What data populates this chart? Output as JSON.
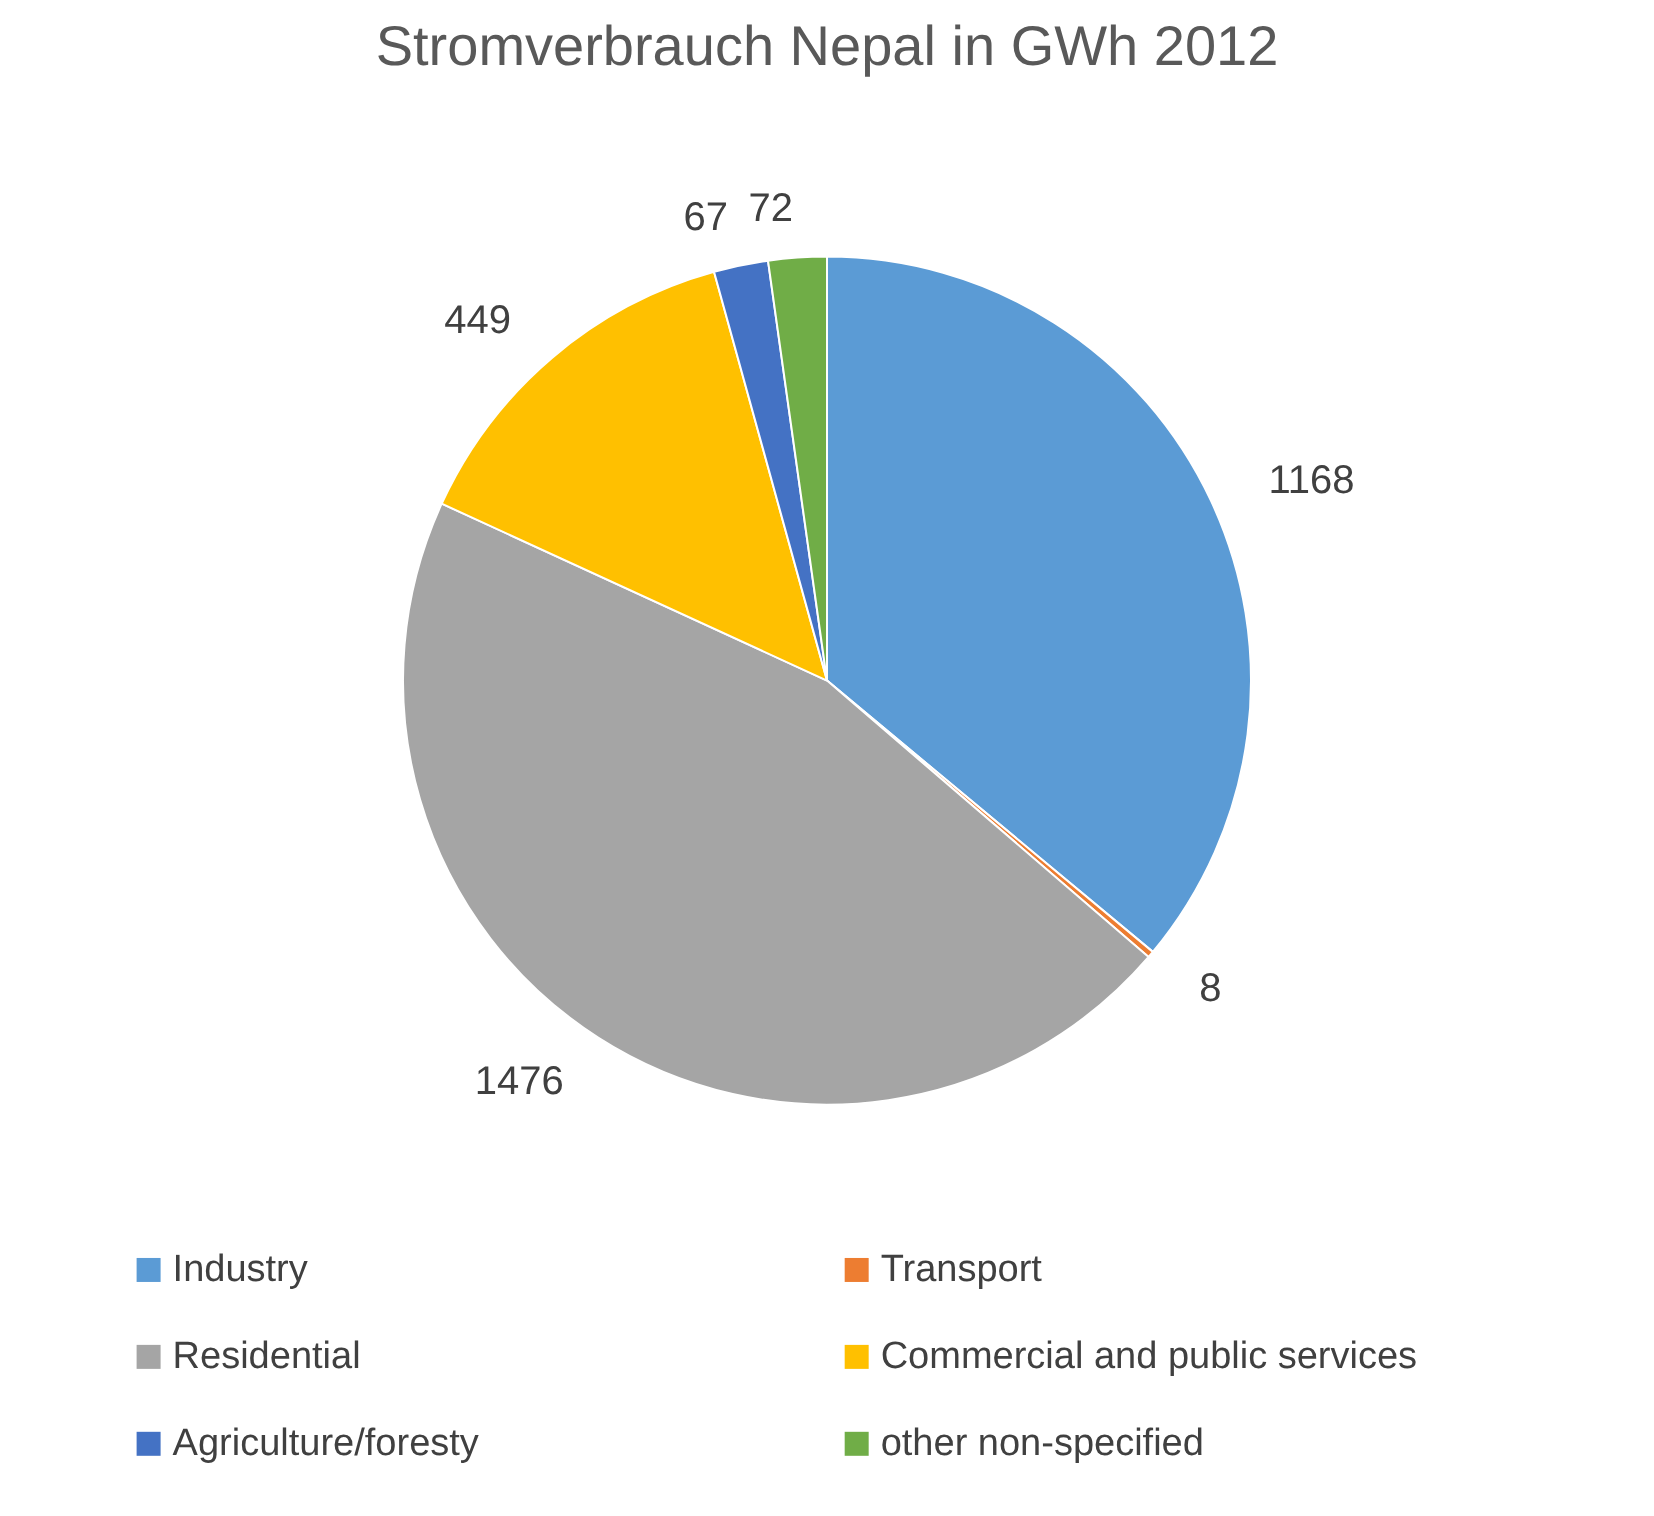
{
  "chart_data": {
    "type": "pie",
    "title": "Stromverbrauch Nepal in GWh 2012",
    "categories": [
      "Industry",
      "Transport",
      "Residential",
      "Commercial and public services",
      "Agriculture/foresty",
      "other non-specified"
    ],
    "values": [
      1168,
      8,
      1476,
      449,
      67,
      72
    ],
    "colors": [
      "#5b9bd5",
      "#ed7d31",
      "#a5a5a5",
      "#ffc000",
      "#4472c4",
      "#70ad47"
    ],
    "data_labels": true,
    "legend": "bottom"
  }
}
